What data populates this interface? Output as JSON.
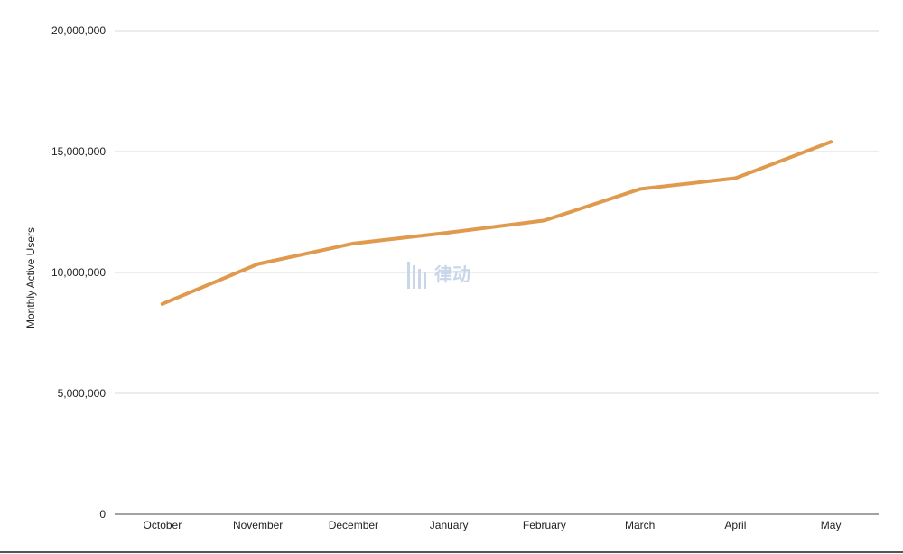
{
  "chart_data": {
    "type": "line",
    "title": "",
    "xlabel": "",
    "ylabel": "Monthly Active Users",
    "categories": [
      "October",
      "November",
      "December",
      "January",
      "February",
      "March",
      "April",
      "May"
    ],
    "series": [
      {
        "values": [
          8700000,
          10350000,
          11200000,
          11650000,
          12150000,
          13450000,
          13900000,
          15400000
        ],
        "color": "#e09a4e"
      }
    ],
    "ylim": [
      0,
      20000000
    ],
    "yticks": [
      0,
      5000000,
      10000000,
      15000000,
      20000000
    ],
    "ytick_labels": [
      "0",
      "5,000,000",
      "10,000,000",
      "15,000,000",
      "20,000,000"
    ],
    "grid": true,
    "legend": "none"
  },
  "watermark": {
    "text": "律动",
    "icon": "bar-logo-icon"
  }
}
